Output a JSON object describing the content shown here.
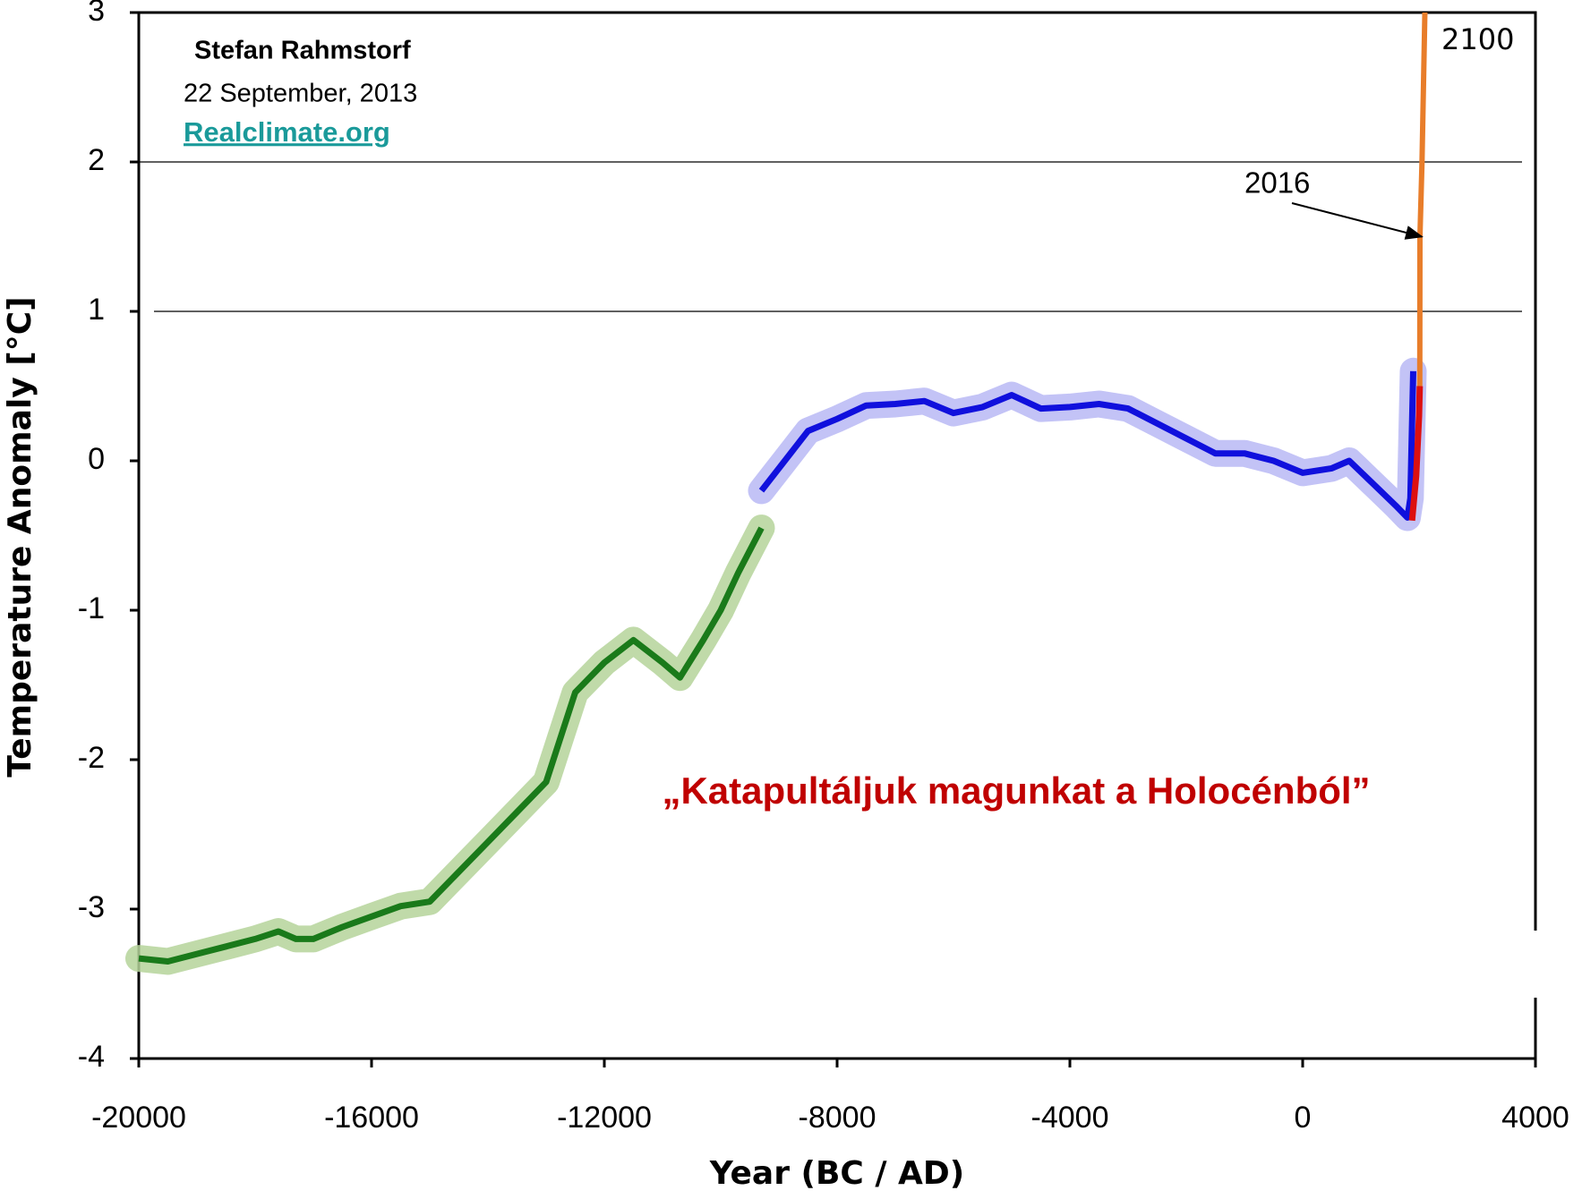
{
  "chart_data": {
    "type": "line",
    "xlabel": "Year (BC / AD)",
    "ylabel": "Temperature Anomaly [°C]",
    "xlim": [
      -20000,
      4000
    ],
    "ylim": [
      -4,
      3
    ],
    "xticks": [
      -20000,
      -16000,
      -12000,
      -8000,
      -4000,
      0,
      4000
    ],
    "yticks": [
      -4,
      -3,
      -2,
      -1,
      0,
      1,
      2,
      3
    ],
    "grid_lines": [
      1,
      2
    ],
    "annotations": {
      "author": "Stefan Rahmstorf",
      "date": "22 September, 2013",
      "source": "Realclimate.org",
      "label_2016": "2016",
      "label_2100": "2100",
      "caption": "„Katapultáljuk magunkat a Holocénból”"
    },
    "series": [
      {
        "color": "#1a7a1a",
        "band_color": "#b5d39a",
        "x": [
          -20000,
          -19500,
          -19000,
          -18500,
          -18000,
          -17600,
          -17300,
          -17000,
          -16500,
          -16000,
          -15500,
          -15000,
          -14500,
          -14000,
          -13500,
          -13000,
          -12500,
          -12000,
          -11500,
          -11000,
          -10700,
          -10300,
          -10000,
          -9700,
          -9300
        ],
        "values": [
          -3.33,
          -3.35,
          -3.3,
          -3.25,
          -3.2,
          -3.15,
          -3.2,
          -3.2,
          -3.12,
          -3.05,
          -2.98,
          -2.95,
          -2.75,
          -2.55,
          -2.35,
          -2.15,
          -1.55,
          -1.35,
          -1.2,
          -1.35,
          -1.45,
          -1.2,
          -1.0,
          -0.75,
          -0.45
        ]
      },
      {
        "color": "#1010dd",
        "band_color": "#b8b8f4",
        "x": [
          -9300,
          -9000,
          -8500,
          -8000,
          -7500,
          -7000,
          -6500,
          -6000,
          -5500,
          -5000,
          -4500,
          -4000,
          -3500,
          -3000,
          -2500,
          -2000,
          -1500,
          -1000,
          -500,
          0,
          500,
          800,
          1200,
          1600,
          1800,
          1850,
          1900
        ],
        "values": [
          -0.2,
          -0.05,
          0.2,
          0.28,
          0.37,
          0.38,
          0.4,
          0.32,
          0.36,
          0.44,
          0.35,
          0.36,
          0.38,
          0.35,
          0.25,
          0.15,
          0.05,
          0.05,
          0.0,
          -0.08,
          -0.05,
          0.0,
          -0.15,
          -0.3,
          -0.38,
          -0.25,
          0.6
        ]
      },
      {
        "color": "#dd1010",
        "x": [
          1880,
          1950,
          2000,
          2013
        ],
        "values": [
          -0.4,
          -0.1,
          0.3,
          0.5
        ]
      },
      {
        "color": "#e87d2a",
        "x": [
          2013,
          2016,
          2050,
          2100
        ],
        "values": [
          0.5,
          1.5,
          2.0,
          3.0
        ]
      }
    ]
  }
}
